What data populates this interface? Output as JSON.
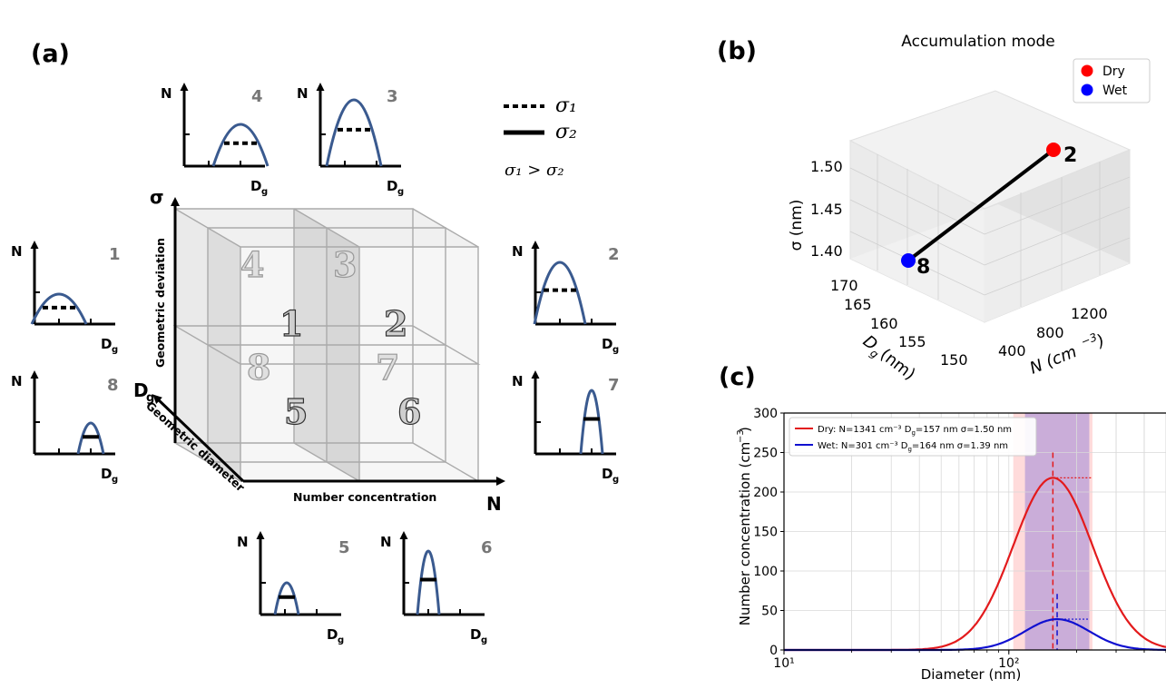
{
  "panel_a": {
    "label": "(a)",
    "legend": {
      "dotted": "σ₁",
      "solid": "σ₂",
      "relation": "σ₁ > σ₂"
    },
    "axes": {
      "sigma": "σ",
      "dg": "D",
      "n": "N",
      "geometric_deviation": "Geometric deviation",
      "geometric_diameter": "Geometric diameter",
      "number_concentration": "Number concentration"
    },
    "mini_axis": {
      "n": "N",
      "dg": "D"
    },
    "cube_numbers": [
      "1",
      "2",
      "3",
      "4",
      "5",
      "6",
      "7",
      "8"
    ]
  },
  "panel_b": {
    "label": "(b)",
    "title": "Accumulation mode",
    "legend": [
      {
        "name": "Dry",
        "color": "#ff0000"
      },
      {
        "name": "Wet",
        "color": "#0000ff"
      }
    ],
    "point_labels": {
      "dry": "2",
      "wet": "8"
    },
    "z_label": "σ (nm)",
    "y_label": "D",
    "x_label": "N (cm",
    "z_ticks": [
      "1.50",
      "1.45",
      "1.40"
    ],
    "y_ticks": [
      "170",
      "165",
      "160",
      "155",
      "150"
    ],
    "x_ticks": [
      "400",
      "800",
      "1200"
    ]
  },
  "panel_c": {
    "label": "(c)",
    "xlabel": "Diameter (nm)",
    "ylabel": "Number concentration (cm",
    "legend_dry": "Dry: N=1341 cm⁻³ D",
    "legend_dry_tail": "=157 nm σ=1.50 nm",
    "legend_wet": "Wet: N=301 cm⁻³ D",
    "legend_wet_tail": "=164 nm σ=1.39 nm",
    "y_tick_labels": [
      "0",
      "50",
      "100",
      "150",
      "200",
      "250",
      "300"
    ],
    "x_tick_labels": [
      "10¹",
      "10²"
    ]
  },
  "chart_data": [
    {
      "type": "scatter",
      "title": "Accumulation mode",
      "zlabel": "σ (nm)",
      "series": [
        {
          "name": "Dry",
          "N": 1341,
          "Dg": 157,
          "sigma": 1.5,
          "label": "2",
          "color": "#ff0000"
        },
        {
          "name": "Wet",
          "N": 301,
          "Dg": 164,
          "sigma": 1.39,
          "label": "8",
          "color": "#0000ff"
        }
      ],
      "zlim": [
        1.38,
        1.51
      ],
      "ylim": [
        150,
        170
      ],
      "xlim": [
        200,
        1400
      ]
    },
    {
      "type": "line",
      "xscale": "log",
      "xlabel": "Diameter (nm)",
      "ylabel": "Number concentration (cm⁻³)",
      "xlim": [
        10,
        500
      ],
      "ylim": [
        0,
        300
      ],
      "yticks": [
        0,
        50,
        100,
        150,
        200,
        250,
        300
      ],
      "grid": true,
      "legend": "top-left",
      "series": [
        {
          "name": "Dry: N=1341 cm⁻³ Dg=157 nm σ=1.50 nm",
          "color": "#e31a1c",
          "N": 1341,
          "Dg": 157,
          "sigma": 1.5,
          "peak": 218
        },
        {
          "name": "Wet: N=301 cm⁻³ Dg=164 nm σ=1.39 nm",
          "color": "#1010d0",
          "N": 301,
          "Dg": 164,
          "sigma": 1.39,
          "peak": 39
        }
      ]
    }
  ]
}
